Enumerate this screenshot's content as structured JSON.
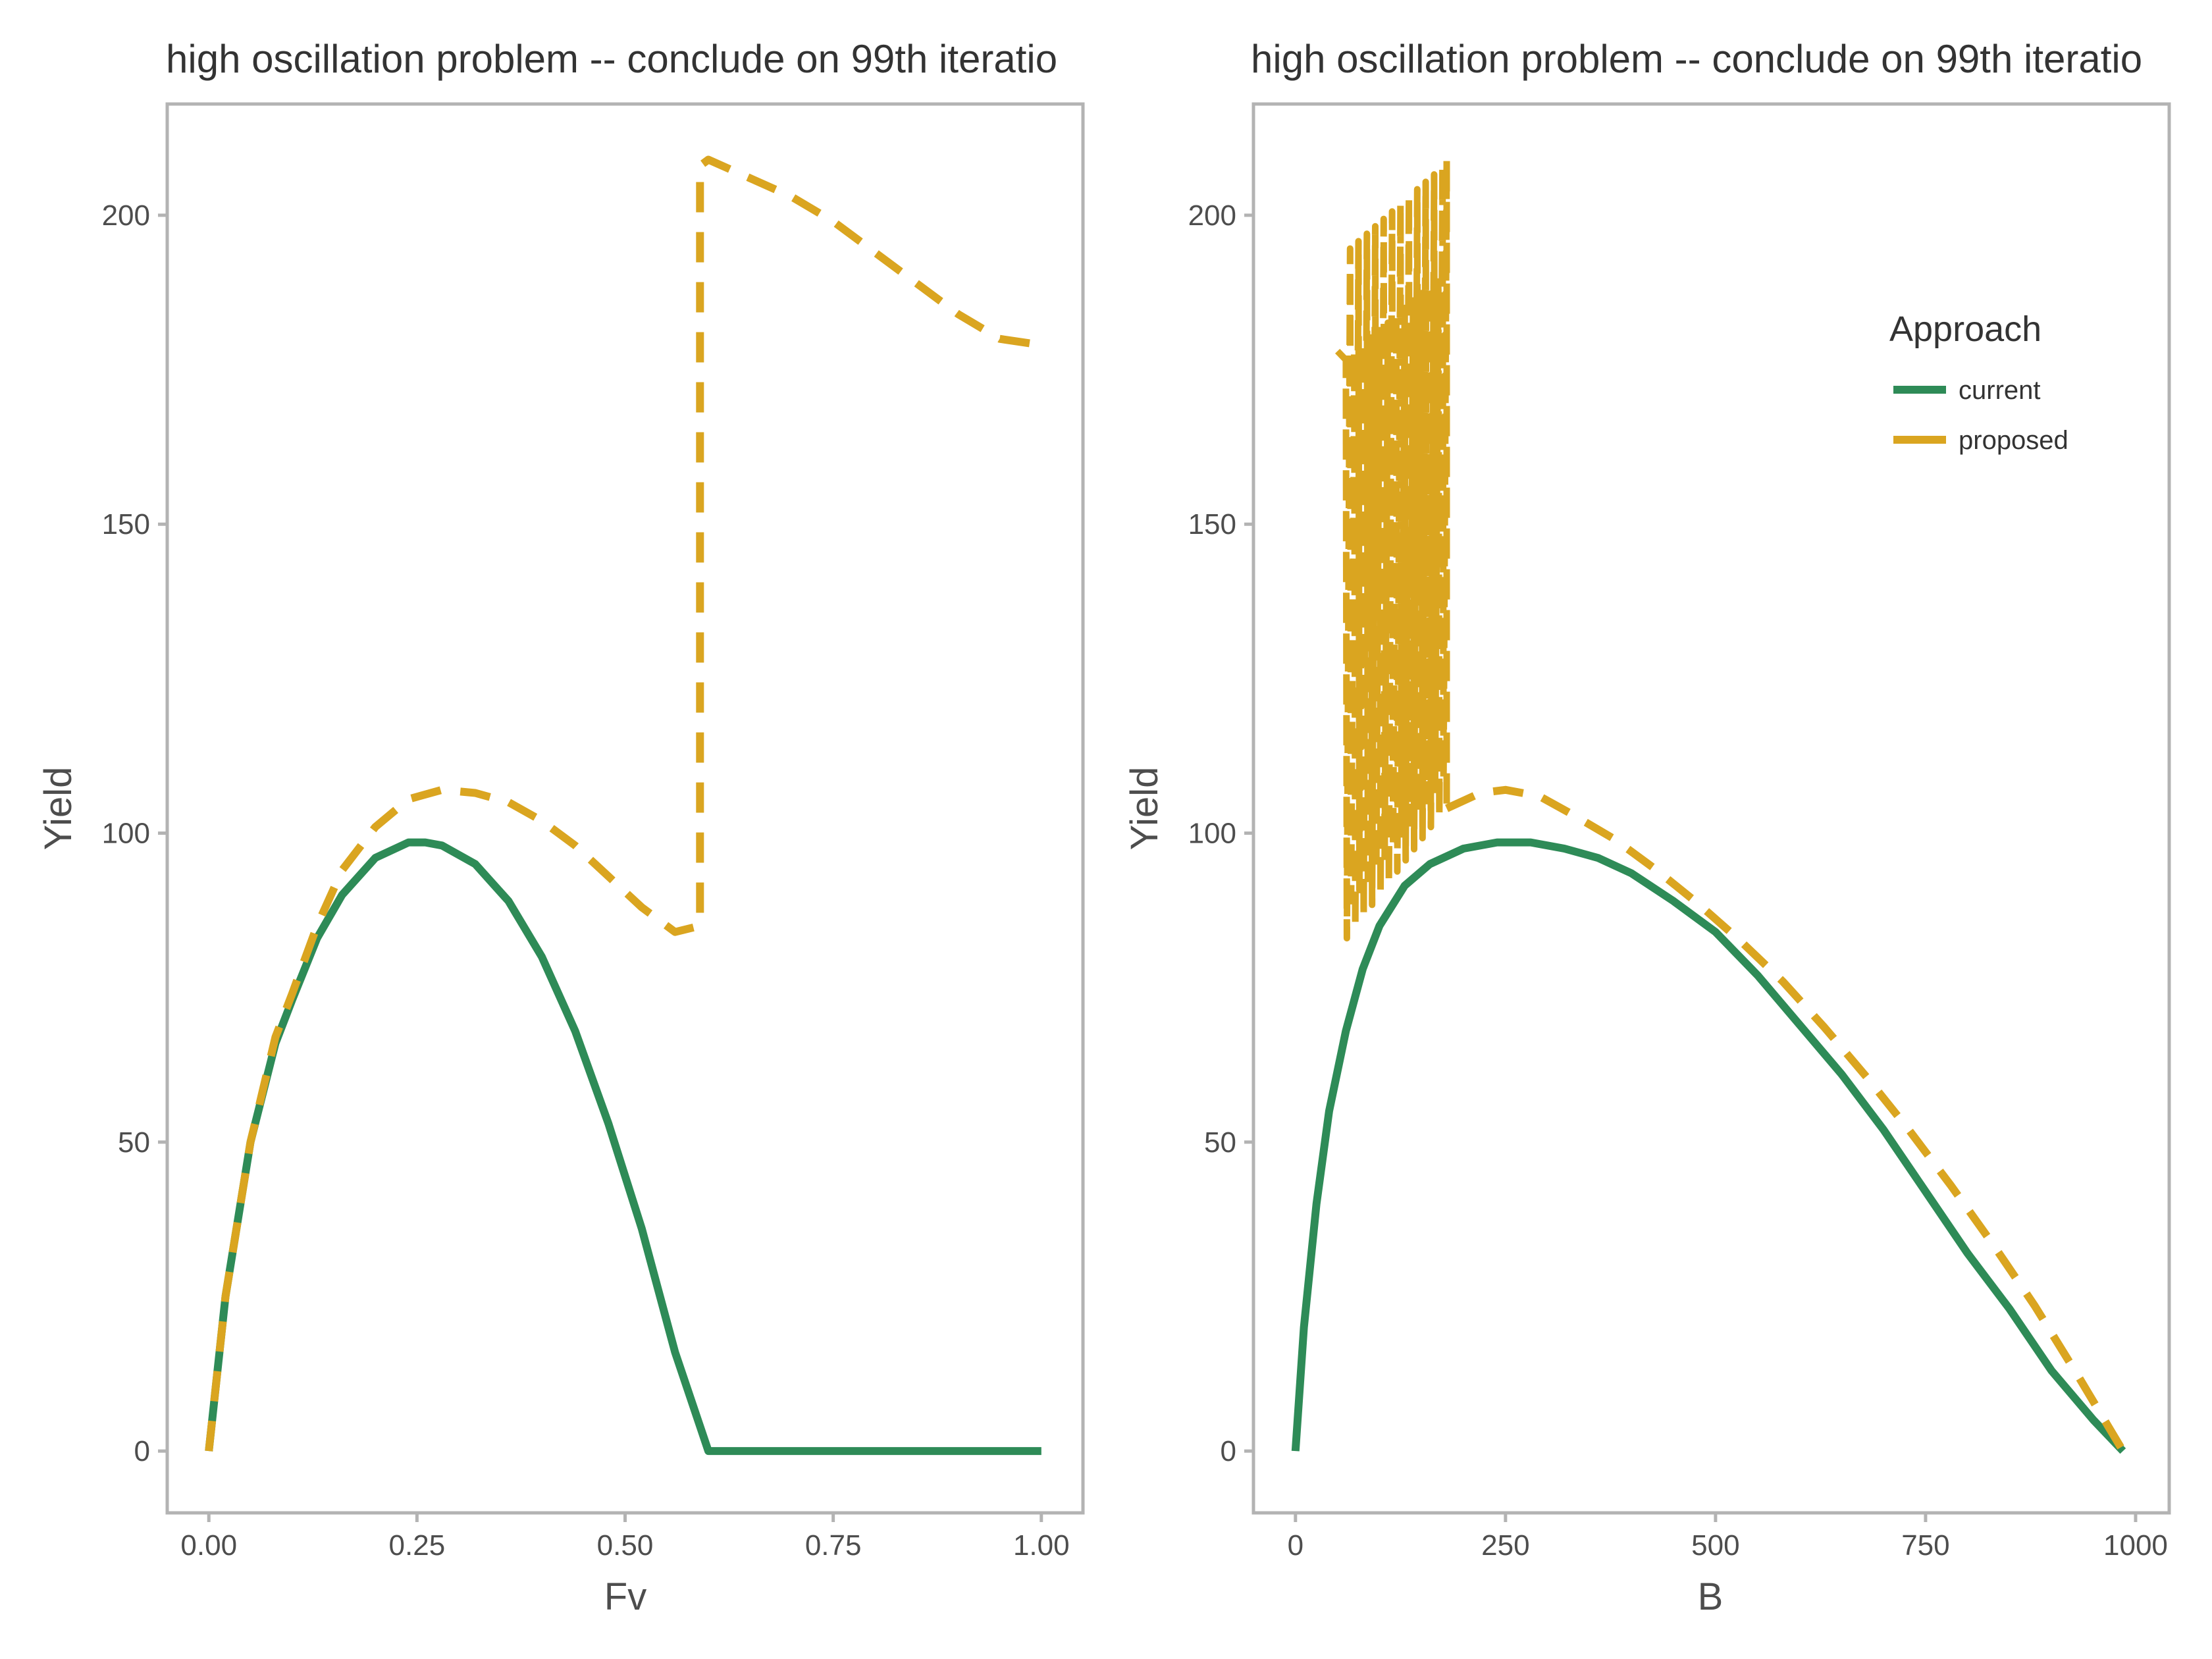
{
  "colors": {
    "current": "#2e8b57",
    "proposed": "#daa520",
    "panel_border": "#b3b3b3",
    "tick": "#b3b3b3",
    "text": "#4d4d4d"
  },
  "legend": {
    "title": "Approach",
    "placement": "inside-top-right of right panel",
    "items": [
      {
        "label": "current",
        "line": "solid"
      },
      {
        "label": "proposed",
        "line": "dashed"
      }
    ]
  },
  "chart_data": [
    {
      "type": "line",
      "title": "high oscillation problem -- conclude on 99th iteratio",
      "xlabel": "Fv",
      "ylabel": "Yield",
      "xlim": [
        -0.05,
        1.05
      ],
      "ylim": [
        -10,
        218
      ],
      "xticks": [
        0,
        0.25,
        0.5,
        0.75,
        1
      ],
      "xtick_labels": [
        "0.00",
        "0.25",
        "0.50",
        "0.75",
        "1.00"
      ],
      "yticks": [
        0,
        50,
        100,
        150,
        200
      ],
      "ytick_labels": [
        "0",
        "50",
        "100",
        "150",
        "200"
      ],
      "grid": false,
      "series": [
        {
          "name": "current",
          "x": [
            0,
            0.02,
            0.05,
            0.08,
            0.1,
            0.13,
            0.16,
            0.2,
            0.24,
            0.26,
            0.28,
            0.32,
            0.36,
            0.4,
            0.44,
            0.48,
            0.52,
            0.56,
            0.6,
            0.635,
            0.7,
            0.8,
            0.9,
            1.0
          ],
          "y": [
            0,
            25,
            50,
            66,
            73,
            83,
            90,
            96,
            98.5,
            98.5,
            98,
            95,
            89,
            80,
            68,
            53,
            36,
            16,
            0,
            0,
            0,
            0,
            0,
            0
          ]
        },
        {
          "name": "proposed",
          "x": [
            0,
            0.02,
            0.05,
            0.08,
            0.1,
            0.13,
            0.16,
            0.2,
            0.24,
            0.28,
            0.32,
            0.36,
            0.4,
            0.44,
            0.48,
            0.52,
            0.56,
            0.59,
            0.59,
            0.6,
            0.65,
            0.7,
            0.75,
            0.8,
            0.85,
            0.9,
            0.95,
            1.0
          ],
          "y": [
            0,
            25,
            50,
            67,
            74,
            85,
            94,
            101,
            105.5,
            107,
            106.5,
            105,
            102,
            98,
            93,
            88,
            84,
            85,
            208,
            209,
            206,
            203,
            199,
            194,
            189,
            184,
            180,
            179
          ]
        }
      ]
    },
    {
      "type": "line",
      "title": "high oscillation problem -- conclude on 99th iteratio",
      "xlabel": "B",
      "ylabel": "Yield",
      "xlim": [
        -50,
        1040
      ],
      "ylim": [
        -10,
        218
      ],
      "xticks": [
        0,
        250,
        500,
        750,
        1000
      ],
      "xtick_labels": [
        "0",
        "250",
        "500",
        "750",
        "1000"
      ],
      "yticks": [
        0,
        50,
        100,
        150,
        200
      ],
      "ytick_labels": [
        "0",
        "50",
        "100",
        "150",
        "200"
      ],
      "grid": false,
      "series": [
        {
          "name": "current",
          "x": [
            0,
            10,
            25,
            40,
            60,
            80,
            100,
            130,
            160,
            200,
            240,
            280,
            320,
            360,
            400,
            450,
            500,
            550,
            600,
            650,
            700,
            750,
            800,
            850,
            900,
            950,
            985
          ],
          "y": [
            0,
            20,
            40,
            55,
            68,
            78,
            85,
            91.5,
            95,
            97.5,
            98.5,
            98.5,
            97.5,
            96,
            93.5,
            89,
            84,
            77,
            69,
            61,
            52,
            42,
            32,
            23,
            13,
            5,
            0
          ],
          "note_shape": "hump-shaped curve"
        },
        {
          "name": "proposed",
          "x": [
            180,
            220,
            250,
            290,
            330,
            380,
            430,
            480,
            530,
            580,
            630,
            680,
            730,
            780,
            830,
            880,
            930,
            985
          ],
          "y": [
            104,
            106.5,
            107,
            106,
            103,
            99,
            94,
            88.5,
            82.5,
            76,
            68.5,
            60.5,
            52,
            43,
            33.5,
            23.5,
            12.5,
            0
          ],
          "oscillation_band": {
            "x_range": [
              60,
              180
            ],
            "y_range": [
              83,
              209
            ],
            "cycles": 12
          }
        }
      ]
    }
  ]
}
